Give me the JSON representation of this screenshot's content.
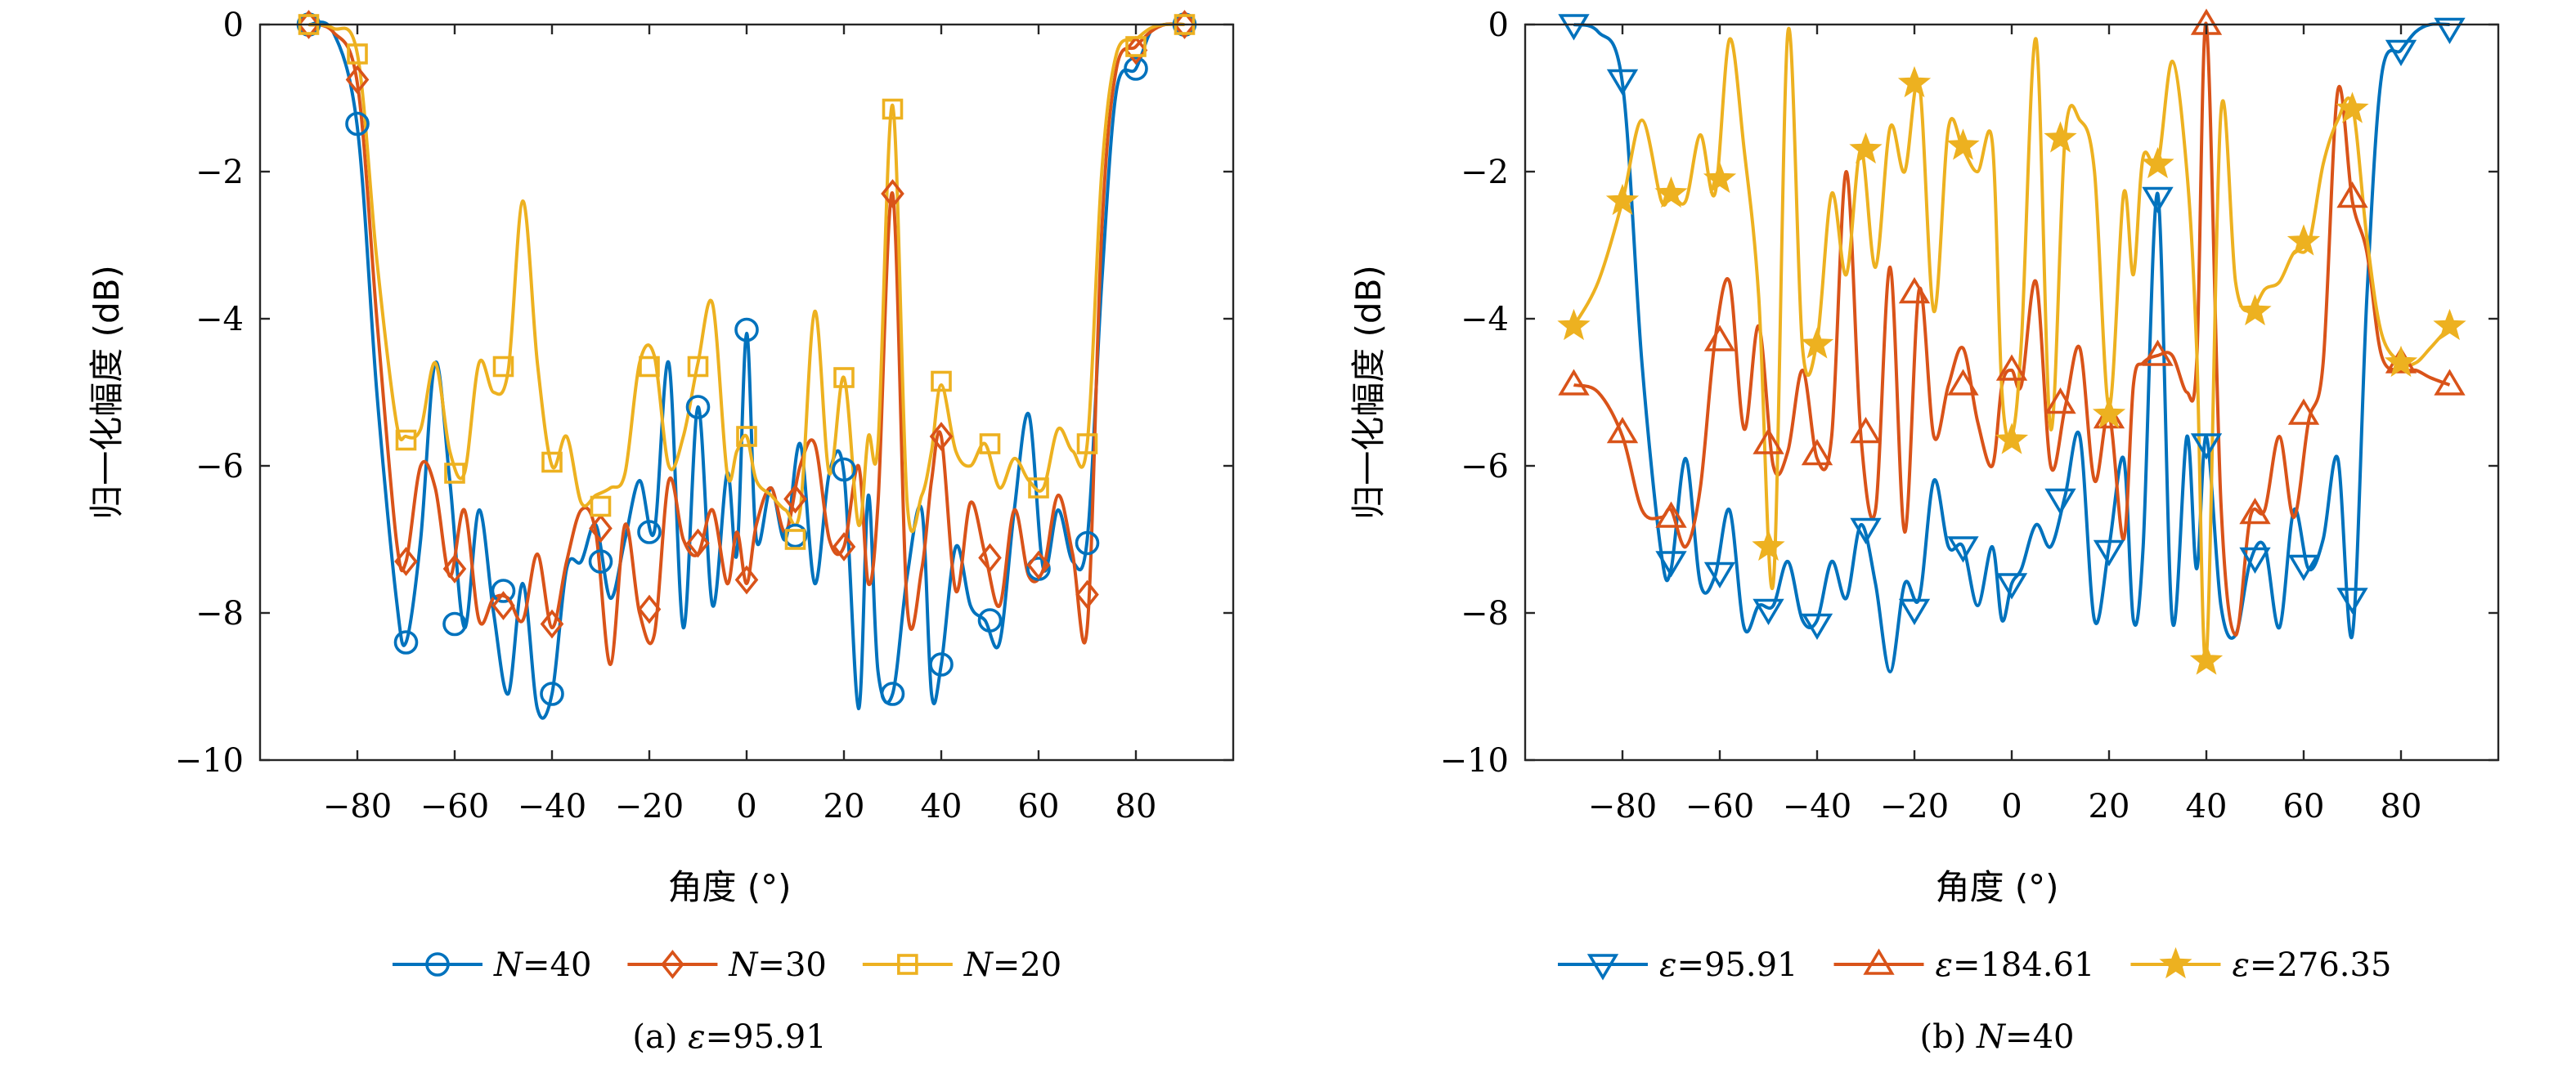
{
  "chart_data": [
    {
      "type": "line",
      "caption": "(a) ε=95.91",
      "xlabel": "角度 (°)",
      "ylabel": "归一化幅度 (dB)",
      "xlim": [
        -100,
        100
      ],
      "ylim": [
        -10,
        0
      ],
      "xticks": [
        -80,
        -60,
        -40,
        -20,
        0,
        20,
        40,
        60,
        80
      ],
      "xtick_labels": [
        "−80",
        "−60",
        "−40",
        "−20",
        "0",
        "20",
        "40",
        "60",
        "80"
      ],
      "yticks": [
        0,
        -2,
        -4,
        -6,
        -8,
        -10
      ],
      "ytick_labels": [
        "0",
        "−2",
        "−4",
        "−6",
        "−8",
        "−10"
      ],
      "grid": false,
      "legend_position": "bottom",
      "series": [
        {
          "name": "N=40",
          "legend_var": "N",
          "legend_val": "=40",
          "color": "#0072BD",
          "marker": "circle",
          "x": [
            -90,
            -85,
            -80,
            -76,
            -72,
            -70,
            -67,
            -64,
            -61,
            -58,
            -55,
            -52,
            -49,
            -46,
            -43,
            -40,
            -37,
            -34,
            -31,
            -28,
            -25,
            -22,
            -19,
            -16,
            -13,
            -10,
            -7,
            -4,
            -2,
            0,
            2,
            5,
            8,
            11,
            14,
            17,
            20,
            23,
            25,
            27,
            30,
            33,
            36,
            38,
            40,
            43,
            46,
            49,
            52,
            55,
            58,
            61,
            64,
            67,
            70,
            73,
            76,
            80,
            83,
            86,
            90
          ],
          "y": [
            0,
            -0.1,
            -1.4,
            -5.0,
            -7.8,
            -8.4,
            -7.0,
            -4.6,
            -6.2,
            -8.2,
            -6.6,
            -8.0,
            -9.1,
            -7.6,
            -9.3,
            -9.1,
            -7.4,
            -7.3,
            -6.8,
            -7.8,
            -7.0,
            -6.2,
            -6.9,
            -4.6,
            -8.2,
            -5.2,
            -7.9,
            -6.1,
            -7.2,
            -4.2,
            -7.0,
            -6.3,
            -7.0,
            -5.7,
            -7.6,
            -6.1,
            -6.1,
            -9.3,
            -6.4,
            -8.8,
            -9.1,
            -7.5,
            -6.6,
            -9.1,
            -8.7,
            -7.1,
            -7.9,
            -8.1,
            -8.4,
            -6.6,
            -5.3,
            -7.4,
            -6.6,
            -7.3,
            -7.0,
            -3.5,
            -0.9,
            -0.6,
            -0.1,
            0,
            0
          ],
          "markers_x": [
            -90,
            -80,
            -70,
            -60,
            -50,
            -40,
            -30,
            -20,
            -10,
            0,
            10,
            20,
            30,
            40,
            50,
            60,
            70,
            80,
            90
          ],
          "markers_y": [
            0,
            -1.35,
            -8.4,
            -8.15,
            -7.7,
            -9.1,
            -7.3,
            -6.9,
            -5.2,
            -4.15,
            -6.95,
            -6.05,
            -9.1,
            -8.7,
            -8.1,
            -7.4,
            -7.05,
            -0.6,
            0
          ]
        },
        {
          "name": "N=30",
          "legend_var": "N",
          "legend_val": "=30",
          "color": "#D95319",
          "marker": "diamond",
          "x": [
            -90,
            -85,
            -80,
            -76,
            -72,
            -70,
            -67,
            -64,
            -61,
            -58,
            -55,
            -52,
            -49,
            -46,
            -43,
            -40,
            -37,
            -34,
            -31,
            -28,
            -25,
            -22,
            -19,
            -16,
            -13,
            -10,
            -7,
            -4,
            -2,
            0,
            2,
            5,
            8,
            11,
            14,
            17,
            20,
            23,
            25,
            27,
            30,
            33,
            36,
            38,
            40,
            43,
            46,
            49,
            52,
            55,
            58,
            61,
            64,
            67,
            70,
            73,
            76,
            80,
            83,
            86,
            90
          ],
          "y": [
            0,
            -0.1,
            -0.8,
            -4.0,
            -7.0,
            -7.3,
            -6.0,
            -6.3,
            -7.5,
            -6.6,
            -8.1,
            -7.8,
            -7.8,
            -8.1,
            -7.2,
            -8.2,
            -7.3,
            -6.6,
            -6.9,
            -8.7,
            -6.8,
            -8.0,
            -8.3,
            -6.2,
            -7.0,
            -7.2,
            -6.6,
            -7.6,
            -6.9,
            -7.6,
            -6.8,
            -6.3,
            -6.9,
            -6.0,
            -5.7,
            -7.0,
            -7.1,
            -6.0,
            -7.6,
            -6.5,
            -2.3,
            -7.9,
            -7.4,
            -6.2,
            -5.6,
            -7.7,
            -6.5,
            -7.2,
            -7.9,
            -6.6,
            -7.5,
            -7.4,
            -6.4,
            -7.2,
            -8.2,
            -2.8,
            -0.6,
            -0.3,
            -0.1,
            0,
            0
          ],
          "markers_x": [
            -90,
            -80,
            -70,
            -60,
            -50,
            -40,
            -30,
            -20,
            -10,
            0,
            10,
            20,
            30,
            40,
            50,
            60,
            70,
            80,
            90
          ],
          "markers_y": [
            0,
            -0.75,
            -7.3,
            -7.4,
            -7.9,
            -8.15,
            -6.85,
            -7.95,
            -7.05,
            -7.55,
            -6.45,
            -7.1,
            -2.3,
            -5.6,
            -7.25,
            -7.35,
            -7.75,
            -0.35,
            0
          ]
        },
        {
          "name": "N=20",
          "legend_var": "N",
          "legend_val": "=20",
          "color": "#EDB120",
          "marker": "square",
          "x": [
            -90,
            -85,
            -80,
            -76,
            -72,
            -70,
            -67,
            -64,
            -61,
            -58,
            -55,
            -52,
            -49,
            -46,
            -43,
            -40,
            -37,
            -34,
            -31,
            -28,
            -25,
            -22,
            -19,
            -16,
            -13,
            -10,
            -7,
            -4,
            -2,
            0,
            2,
            5,
            8,
            11,
            14,
            17,
            20,
            23,
            25,
            27,
            30,
            33,
            36,
            38,
            40,
            43,
            46,
            49,
            52,
            55,
            58,
            61,
            64,
            67,
            70,
            73,
            76,
            80,
            83,
            86,
            90
          ],
          "y": [
            0,
            -0.05,
            -0.4,
            -3.2,
            -5.4,
            -5.6,
            -5.5,
            -4.6,
            -5.8,
            -6.1,
            -4.6,
            -5.0,
            -4.7,
            -2.4,
            -4.6,
            -6.0,
            -5.6,
            -6.5,
            -6.4,
            -6.3,
            -6.1,
            -4.6,
            -4.5,
            -6.0,
            -5.6,
            -4.6,
            -3.8,
            -6.1,
            -5.8,
            -5.6,
            -6.2,
            -6.4,
            -6.6,
            -6.6,
            -3.9,
            -6.1,
            -4.8,
            -6.8,
            -5.6,
            -5.7,
            -1.1,
            -6.5,
            -6.4,
            -5.8,
            -4.9,
            -5.8,
            -6.0,
            -5.7,
            -6.3,
            -5.9,
            -6.2,
            -6.3,
            -5.5,
            -5.8,
            -5.7,
            -2.0,
            -0.4,
            -0.2,
            -0.05,
            0,
            0
          ],
          "markers_x": [
            -90,
            -80,
            -70,
            -60,
            -50,
            -40,
            -30,
            -20,
            -10,
            0,
            10,
            20,
            30,
            40,
            50,
            60,
            70,
            80,
            90
          ],
          "markers_y": [
            0,
            -0.4,
            -5.65,
            -6.1,
            -4.65,
            -5.95,
            -6.55,
            -4.65,
            -4.65,
            -5.6,
            -7.0,
            -4.8,
            -1.15,
            -4.85,
            -5.7,
            -6.3,
            -5.7,
            -0.3,
            0
          ]
        }
      ]
    },
    {
      "type": "line",
      "caption": "(b) N=40",
      "xlabel": "角度 (°)",
      "ylabel": "归一化幅度 (dB)",
      "xlim": [
        -100,
        100
      ],
      "ylim": [
        -10,
        0
      ],
      "xticks": [
        -80,
        -60,
        -40,
        -20,
        0,
        20,
        40,
        60,
        80
      ],
      "xtick_labels": [
        "−80",
        "−60",
        "−40",
        "−20",
        "0",
        "20",
        "40",
        "60",
        "80"
      ],
      "yticks": [
        0,
        -2,
        -4,
        -6,
        -8,
        -10
      ],
      "ytick_labels": [
        "0",
        "−2",
        "−4",
        "−6",
        "−8",
        "−10"
      ],
      "grid": false,
      "legend_position": "bottom",
      "series": [
        {
          "name": "ε=95.91",
          "legend_var": "ε",
          "legend_val": "=95.91",
          "color": "#0072BD",
          "marker": "triangle-down",
          "x": [
            -90,
            -85,
            -80,
            -76,
            -72,
            -70,
            -67,
            -64,
            -61,
            -58,
            -55,
            -52,
            -49,
            -46,
            -43,
            -40,
            -37,
            -34,
            -31,
            -28,
            -25,
            -22,
            -19,
            -16,
            -13,
            -10,
            -7,
            -4,
            -2,
            0,
            2,
            5,
            8,
            11,
            14,
            17,
            20,
            23,
            25,
            27,
            30,
            33,
            36,
            38,
            40,
            43,
            46,
            49,
            52,
            55,
            58,
            61,
            64,
            67,
            70,
            73,
            76,
            80,
            83,
            86,
            90
          ],
          "y": [
            0,
            -0.1,
            -0.8,
            -4.6,
            -7.2,
            -7.4,
            -5.9,
            -7.6,
            -7.5,
            -6.6,
            -8.2,
            -7.9,
            -7.9,
            -7.3,
            -8.1,
            -8.1,
            -7.3,
            -7.8,
            -6.8,
            -7.6,
            -8.8,
            -7.6,
            -7.8,
            -6.2,
            -7.1,
            -7.1,
            -7.9,
            -7.1,
            -8.1,
            -7.6,
            -7.4,
            -6.8,
            -7.1,
            -6.4,
            -5.6,
            -8.1,
            -7.1,
            -5.9,
            -8.1,
            -7.1,
            -2.3,
            -8.1,
            -5.6,
            -7.4,
            -5.6,
            -7.9,
            -8.3,
            -7.3,
            -7.1,
            -8.2,
            -6.6,
            -7.4,
            -7.0,
            -5.9,
            -8.3,
            -3.7,
            -0.7,
            -0.35,
            -0.1,
            0,
            0
          ],
          "markers_x": [
            -90,
            -80,
            -70,
            -60,
            -50,
            -40,
            -30,
            -20,
            -10,
            0,
            10,
            20,
            30,
            40,
            50,
            60,
            70,
            80,
            90
          ],
          "markers_y": [
            0,
            -0.75,
            -7.3,
            -7.45,
            -7.95,
            -8.15,
            -6.85,
            -7.95,
            -7.1,
            -7.6,
            -6.45,
            -7.15,
            -2.35,
            -5.7,
            -7.25,
            -7.35,
            -7.8,
            -0.35,
            -0.05
          ]
        },
        {
          "name": "ε=184.61",
          "legend_var": "ε",
          "legend_val": "=184.61",
          "color": "#D95319",
          "marker": "triangle-up",
          "x": [
            -90,
            -85,
            -80,
            -76,
            -72,
            -70,
            -67,
            -64,
            -61,
            -58,
            -55,
            -52,
            -49,
            -46,
            -43,
            -40,
            -37,
            -34,
            -31,
            -28,
            -25,
            -22,
            -19,
            -16,
            -13,
            -10,
            -7,
            -4,
            -2,
            0,
            2,
            5,
            8,
            11,
            14,
            17,
            20,
            23,
            25,
            27,
            30,
            33,
            36,
            38,
            40,
            43,
            46,
            49,
            52,
            55,
            58,
            61,
            64,
            67,
            70,
            73,
            76,
            80,
            83,
            86,
            90
          ],
          "y": [
            -4.9,
            -5.0,
            -5.6,
            -6.6,
            -6.7,
            -6.6,
            -7.1,
            -6.3,
            -4.3,
            -3.5,
            -5.5,
            -4.1,
            -6.0,
            -5.8,
            -4.7,
            -5.9,
            -5.6,
            -2.0,
            -5.6,
            -6.6,
            -3.3,
            -6.9,
            -3.6,
            -5.6,
            -4.9,
            -4.4,
            -5.4,
            -6.0,
            -4.9,
            -4.7,
            -4.9,
            -3.5,
            -6.0,
            -5.2,
            -4.4,
            -6.2,
            -5.3,
            -7.0,
            -4.9,
            -4.6,
            -4.5,
            -4.5,
            -5.0,
            -4.6,
            0,
            -6.5,
            -8.3,
            -6.7,
            -6.6,
            -5.6,
            -6.7,
            -5.4,
            -4.6,
            -0.9,
            -2.4,
            -3.1,
            -4.5,
            -4.7,
            -4.7,
            -4.8,
            -4.9
          ],
          "markers_x": [
            -90,
            -80,
            -70,
            -60,
            -50,
            -40,
            -30,
            -20,
            -10,
            0,
            10,
            20,
            30,
            40,
            50,
            60,
            70,
            80,
            90
          ],
          "markers_y": [
            -4.9,
            -5.55,
            -6.7,
            -4.3,
            -5.7,
            -5.85,
            -5.55,
            -3.65,
            -4.9,
            -4.7,
            -5.15,
            -5.35,
            -4.5,
            0,
            -6.65,
            -5.3,
            -2.35,
            -4.6,
            -4.9
          ]
        },
        {
          "name": "ε=276.35",
          "legend_var": "ε",
          "legend_val": "=276.35",
          "color": "#EDB120",
          "marker": "star",
          "x": [
            -90,
            -85,
            -80,
            -76,
            -72,
            -70,
            -67,
            -64,
            -61,
            -58,
            -55,
            -52,
            -49,
            -46,
            -43,
            -40,
            -37,
            -34,
            -31,
            -28,
            -25,
            -22,
            -19,
            -16,
            -13,
            -10,
            -7,
            -4,
            -2,
            0,
            2,
            5,
            8,
            11,
            14,
            17,
            20,
            23,
            25,
            27,
            30,
            33,
            36,
            38,
            40,
            43,
            46,
            49,
            52,
            55,
            58,
            61,
            64,
            67,
            70,
            73,
            76,
            80,
            83,
            86,
            90
          ],
          "y": [
            -4.1,
            -3.5,
            -2.4,
            -1.3,
            -2.4,
            -2.3,
            -2.4,
            -1.5,
            -2.3,
            -0.2,
            -1.7,
            -3.7,
            -7.6,
            -0.1,
            -4.4,
            -4.3,
            -2.3,
            -3.4,
            -1.7,
            -3.3,
            -1.4,
            -2.0,
            -0.8,
            -3.9,
            -1.4,
            -1.7,
            -2.0,
            -1.6,
            -5.0,
            -5.6,
            -4.3,
            -0.2,
            -5.5,
            -1.5,
            -1.3,
            -2.0,
            -5.2,
            -2.3,
            -3.4,
            -1.8,
            -1.9,
            -0.5,
            -2.0,
            -4.4,
            -8.6,
            -1.2,
            -3.5,
            -3.9,
            -3.6,
            -3.5,
            -3.1,
            -3.0,
            -1.9,
            -1.3,
            -1.1,
            -2.9,
            -4.2,
            -4.6,
            -4.6,
            -4.4,
            -4.1
          ],
          "markers_x": [
            -90,
            -80,
            -70,
            -60,
            -50,
            -40,
            -30,
            -20,
            -10,
            0,
            10,
            20,
            30,
            40,
            50,
            60,
            70,
            80,
            90
          ],
          "markers_y": [
            -4.1,
            -2.4,
            -2.3,
            -2.1,
            -7.1,
            -4.35,
            -1.7,
            -0.8,
            -1.65,
            -5.65,
            -1.55,
            -5.3,
            -1.9,
            -8.65,
            -3.9,
            -2.95,
            -1.15,
            -4.6,
            -4.1
          ]
        }
      ]
    }
  ]
}
